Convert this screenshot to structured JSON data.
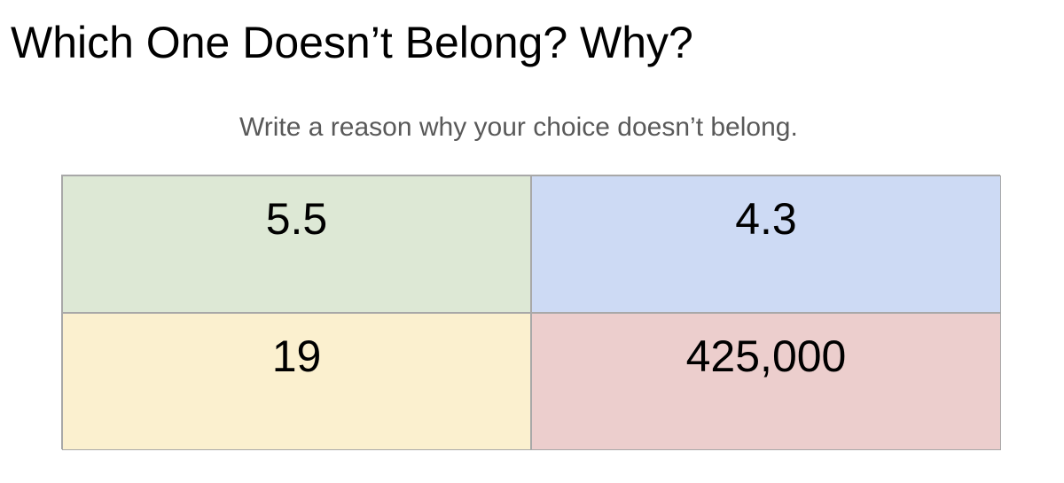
{
  "title": "Which One Doesn’t Belong? Why?",
  "subtitle": "Write a reason why your choice doesn’t belong.",
  "cells": [
    {
      "value": "5.5",
      "color": "#dde8d5"
    },
    {
      "value": "4.3",
      "color": "#cddaf4"
    },
    {
      "value": "19",
      "color": "#fbf0cf"
    },
    {
      "value": "425,000",
      "color": "#eccecd"
    }
  ]
}
